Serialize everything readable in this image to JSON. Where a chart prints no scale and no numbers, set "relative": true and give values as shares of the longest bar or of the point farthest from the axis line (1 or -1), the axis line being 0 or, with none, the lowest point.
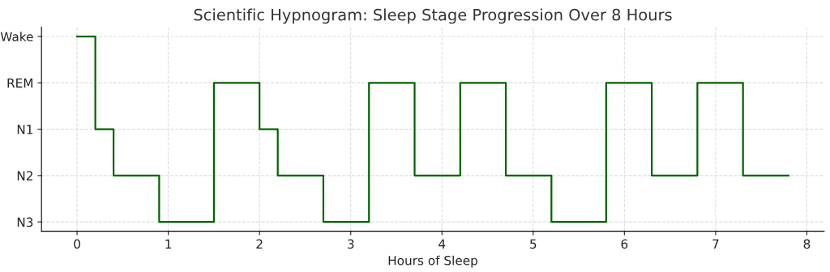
{
  "chart_data": {
    "type": "step",
    "title": "Scientific Hypnogram: Sleep Stage Progression Over 8 Hours",
    "xlabel": "Hours of Sleep",
    "x": [
      0,
      0.2,
      0.4,
      0.9,
      1.5,
      2.0,
      2.2,
      2.7,
      3.2,
      3.7,
      4.2,
      4.7,
      5.2,
      5.8,
      6.3,
      6.8,
      7.3,
      7.8
    ],
    "relative": true,
    "y_categories": [
      "Wake",
      "REM",
      "N1",
      "N2",
      "N3"
    ],
    "series": [
      {
        "color": "#006400",
        "values": [
          1,
          0.5,
          0.25,
          0,
          0.75,
          0.5,
          0.25,
          0,
          0.75,
          0.25,
          0.75,
          0.25,
          0,
          0.75,
          0.25,
          0.75,
          0.25,
          0.25
        ]
      }
    ],
    "xlim": [
      -0.39,
      8.19
    ],
    "xticks": [
      0,
      1,
      2,
      3,
      4,
      5,
      6,
      7,
      8
    ],
    "grid": true,
    "line_style": "solid",
    "marker": "none"
  }
}
